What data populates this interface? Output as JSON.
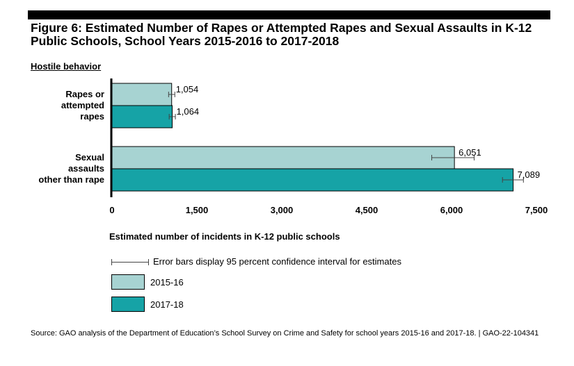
{
  "header": {
    "title": "Figure 6: Estimated Number of Rapes or Attempted Rapes and Sexual Assaults in K-12 Public Schools, School Years 2015-2016 to 2017-2018",
    "subhead": "Hostile behavior"
  },
  "legend": {
    "errbar_text": "Error bars display 95 percent confidence interval for estimates",
    "series1_label": "2015-16",
    "series2_label": "2017-18"
  },
  "source": "Source: GAO analysis of the Department of Education’s School Survey on Crime and Safety for school years 2015-16 and 2017-18. | GAO-22-104341",
  "colors": {
    "series1": "#a7d3d2",
    "series2": "#16a3a6",
    "axis": "#000000",
    "errbar": "#444444"
  },
  "chart_data": {
    "type": "bar",
    "orientation": "horizontal",
    "title": "Figure 6: Estimated Number of Rapes or Attempted Rapes and Sexual Assaults in K-12 Public Schools, School Years 2015-2016 to 2017-2018",
    "categories": [
      [
        "Rapes or",
        "attempted",
        "rapes"
      ],
      [
        "Sexual",
        "assaults",
        "other than rape"
      ]
    ],
    "series": [
      {
        "name": "2015-16",
        "values": [
          1054,
          6051
        ],
        "value_labels": [
          "1,054",
          "6,051"
        ],
        "ci_low": [
          1000,
          5650
        ],
        "ci_high": [
          1110,
          6400
        ]
      },
      {
        "name": "2017-18",
        "values": [
          1064,
          7089
        ],
        "value_labels": [
          "1,064",
          "7,089"
        ],
        "ci_low": [
          1010,
          6900
        ],
        "ci_high": [
          1120,
          7270
        ]
      }
    ],
    "xlabel": "Estimated number of incidents in K-12 public schools",
    "xlim": [
      0,
      7500
    ],
    "xticks": [
      0,
      1500,
      3000,
      4500,
      6000,
      7500
    ],
    "xtick_labels": [
      "0",
      "1,500",
      "3,000",
      "4,500",
      "6,000",
      "7,500"
    ],
    "grid": false,
    "legend_position": "bottom"
  }
}
